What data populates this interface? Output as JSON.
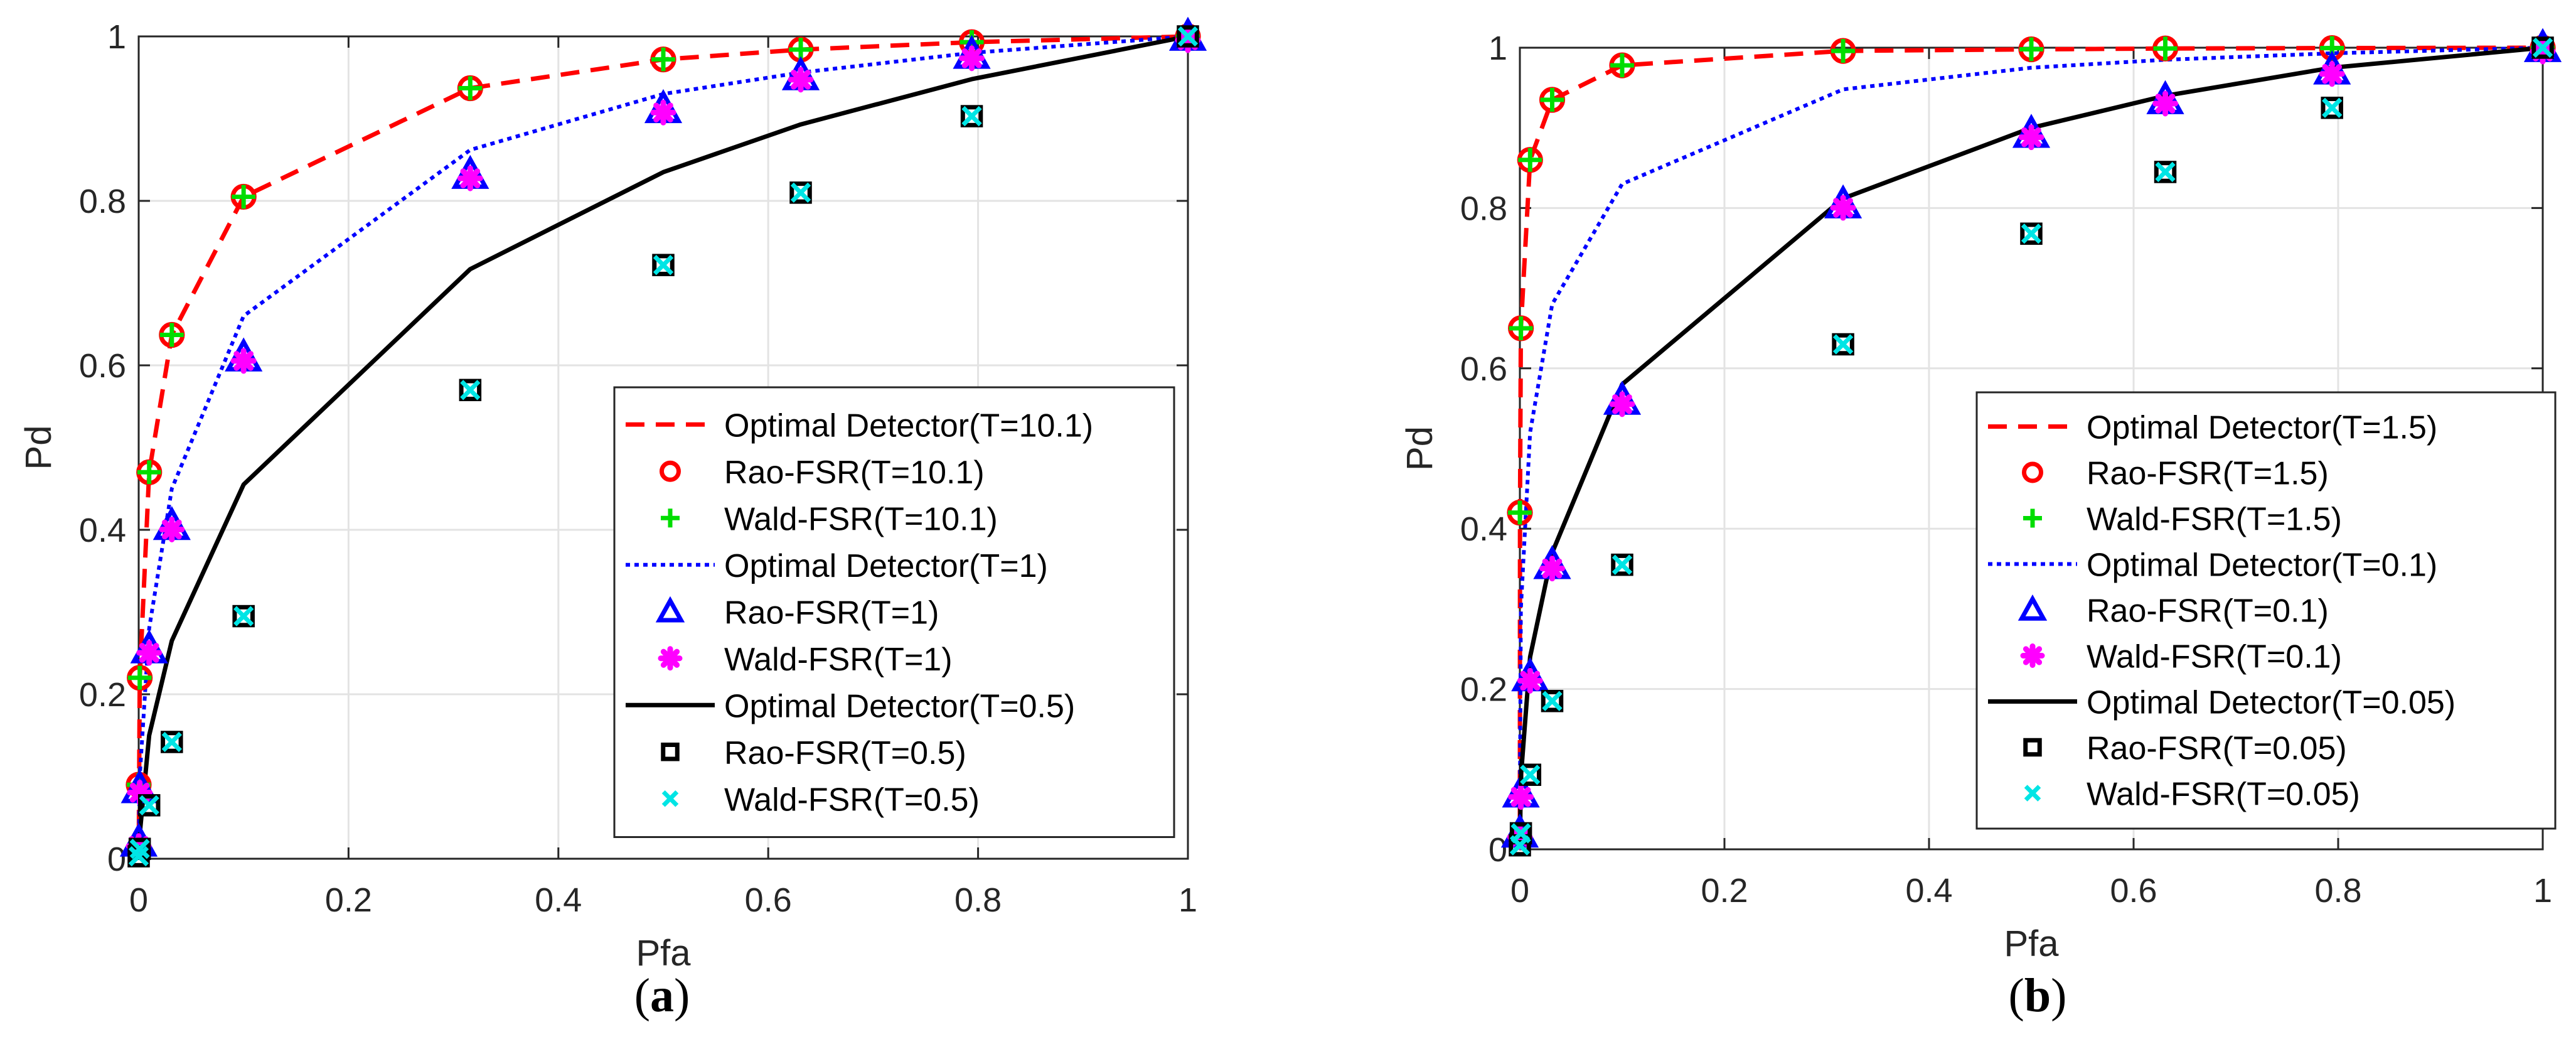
{
  "chart_data": [
    {
      "type": "line",
      "panel": "a",
      "caption_letter": "a",
      "xlabel": "Pfa",
      "ylabel": "Pd",
      "xlim": [
        0,
        1
      ],
      "ylim": [
        0,
        1
      ],
      "xticks": [
        "0",
        "0.2",
        "0.4",
        "0.6",
        "0.8",
        "1"
      ],
      "yticks": [
        "0",
        "0.2",
        "0.4",
        "0.6",
        "0.8",
        "1"
      ],
      "grid": true,
      "legend_position": "bottom-right",
      "series": [
        {
          "name": "Optimal Detector(T=10.1)",
          "style": "dashed-line",
          "color": "#ff0000",
          "x": [
            0,
            0.001,
            0.01,
            0.0316,
            0.1,
            0.316,
            0.5,
            0.631,
            0.794,
            1
          ],
          "y": [
            0,
            0.22,
            0.47,
            0.637,
            0.805,
            0.937,
            0.972,
            0.984,
            0.993,
            1
          ]
        },
        {
          "name": "Rao-FSR(T=10.1)",
          "style": "circle-marker",
          "color": "#ff0000",
          "x": [
            0,
            0.001,
            0.01,
            0.0316,
            0.1,
            0.316,
            0.5,
            0.631,
            0.794,
            1
          ],
          "y": [
            0.09,
            0.22,
            0.47,
            0.637,
            0.805,
            0.937,
            0.972,
            0.984,
            0.993,
            1
          ]
        },
        {
          "name": "Wald-FSR(T=10.1)",
          "style": "plus-marker",
          "color": "#00dd00",
          "x": [
            0,
            0.001,
            0.01,
            0.0316,
            0.1,
            0.316,
            0.5,
            0.631,
            0.794,
            1
          ],
          "y": [
            0.09,
            0.22,
            0.47,
            0.637,
            0.805,
            0.937,
            0.972,
            0.984,
            0.993,
            1
          ]
        },
        {
          "name": "Optimal Detector(T=1)",
          "style": "dotted-line",
          "color": "#0000ff",
          "x": [
            0,
            0.001,
            0.01,
            0.0316,
            0.1,
            0.316,
            0.5,
            0.631,
            0.794,
            1
          ],
          "y": [
            0,
            0.1,
            0.28,
            0.45,
            0.66,
            0.862,
            0.93,
            0.956,
            0.98,
            1
          ]
        },
        {
          "name": "Rao-FSR(T=1)",
          "style": "triangle-marker",
          "color": "#0000ff",
          "x": [
            0,
            0.001,
            0.01,
            0.0316,
            0.1,
            0.316,
            0.5,
            0.631,
            0.794,
            1
          ],
          "y": [
            0.02,
            0.085,
            0.255,
            0.405,
            0.61,
            0.832,
            0.912,
            0.952,
            0.978,
            1
          ]
        },
        {
          "name": "Wald-FSR(T=1)",
          "style": "star-marker",
          "color": "#ff00ff",
          "x": [
            0,
            0.001,
            0.01,
            0.0316,
            0.1,
            0.316,
            0.5,
            0.631,
            0.794,
            1
          ],
          "y": [
            0.02,
            0.085,
            0.255,
            0.405,
            0.61,
            0.832,
            0.912,
            0.952,
            0.978,
            1
          ]
        },
        {
          "name": "Optimal Detector(T=0.5)",
          "style": "solid-line",
          "color": "#000000",
          "x": [
            0,
            0.001,
            0.01,
            0.0316,
            0.1,
            0.316,
            0.5,
            0.631,
            0.794,
            1
          ],
          "y": [
            0,
            0.03,
            0.15,
            0.265,
            0.455,
            0.717,
            0.835,
            0.893,
            0.948,
            1
          ]
        },
        {
          "name": "Rao-FSR(T=0.5)",
          "style": "square-marker",
          "color": "#000000",
          "x": [
            0,
            0.001,
            0.01,
            0.0316,
            0.1,
            0.316,
            0.5,
            0.631,
            0.794,
            1
          ],
          "y": [
            0.003,
            0.012,
            0.065,
            0.142,
            0.295,
            0.57,
            0.722,
            0.81,
            0.903,
            1
          ]
        },
        {
          "name": "Wald-FSR(T=0.5)",
          "style": "cross-marker",
          "color": "#00e5e5",
          "x": [
            0,
            0.001,
            0.01,
            0.0316,
            0.1,
            0.316,
            0.5,
            0.631,
            0.794,
            1
          ],
          "y": [
            0.003,
            0.012,
            0.065,
            0.142,
            0.295,
            0.57,
            0.722,
            0.81,
            0.903,
            1
          ]
        }
      ]
    },
    {
      "type": "line",
      "panel": "b",
      "caption_letter": "b",
      "xlabel": "Pfa",
      "ylabel": "Pd",
      "xlim": [
        0,
        1
      ],
      "ylim": [
        0,
        1
      ],
      "xticks": [
        "0",
        "0.2",
        "0.4",
        "0.6",
        "0.8",
        "1"
      ],
      "yticks": [
        "0",
        "0.2",
        "0.4",
        "0.6",
        "0.8",
        "1"
      ],
      "grid": true,
      "legend_position": "bottom-right",
      "series": [
        {
          "name": "Optimal Detector(T=1.5)",
          "style": "dashed-line",
          "color": "#ff0000",
          "x": [
            0,
            0.0001,
            0.001,
            0.01,
            0.0316,
            0.1,
            0.316,
            0.5,
            0.631,
            0.794,
            1
          ],
          "y": [
            0,
            0.42,
            0.65,
            0.86,
            0.935,
            0.978,
            0.996,
            0.998,
            0.999,
            0.9995,
            1
          ]
        },
        {
          "name": "Rao-FSR(T=1.5)",
          "style": "circle-marker",
          "color": "#ff0000",
          "x": [
            0,
            0.001,
            0.01,
            0.0316,
            0.1,
            0.316,
            0.5,
            0.631,
            0.794,
            1
          ],
          "y": [
            0.42,
            0.65,
            0.86,
            0.935,
            0.978,
            0.996,
            0.998,
            0.999,
            0.9995,
            1
          ]
        },
        {
          "name": "Wald-FSR(T=1.5)",
          "style": "plus-marker",
          "color": "#00dd00",
          "x": [
            0,
            0.001,
            0.01,
            0.0316,
            0.1,
            0.316,
            0.5,
            0.631,
            0.794,
            1
          ],
          "y": [
            0.42,
            0.65,
            0.86,
            0.935,
            0.978,
            0.996,
            0.998,
            0.999,
            0.9995,
            1
          ]
        },
        {
          "name": "Optimal Detector(T=0.1)",
          "style": "dotted-line",
          "color": "#0000ff",
          "x": [
            0,
            0.001,
            0.01,
            0.0316,
            0.1,
            0.316,
            0.5,
            0.631,
            0.794,
            1
          ],
          "y": [
            0.05,
            0.3,
            0.52,
            0.68,
            0.83,
            0.948,
            0.975,
            0.985,
            0.993,
            1
          ]
        },
        {
          "name": "Rao-FSR(T=0.1)",
          "style": "triangle-marker",
          "color": "#0000ff",
          "x": [
            0,
            0.001,
            0.01,
            0.0316,
            0.1,
            0.316,
            0.5,
            0.631,
            0.794,
            1
          ],
          "y": [
            0.02,
            0.07,
            0.215,
            0.355,
            0.56,
            0.805,
            0.893,
            0.935,
            0.972,
            1
          ]
        },
        {
          "name": "Wald-FSR(T=0.1)",
          "style": "star-marker",
          "color": "#ff00ff",
          "x": [
            0,
            0.001,
            0.01,
            0.0316,
            0.1,
            0.316,
            0.5,
            0.631,
            0.794,
            1
          ],
          "y": [
            0.02,
            0.07,
            0.215,
            0.355,
            0.56,
            0.805,
            0.893,
            0.935,
            0.972,
            1
          ]
        },
        {
          "name": "Optimal Detector(T=0.05)",
          "style": "solid-line",
          "color": "#000000",
          "x": [
            0,
            0.001,
            0.01,
            0.0316,
            0.1,
            0.316,
            0.5,
            0.631,
            0.794,
            1
          ],
          "y": [
            0,
            0.09,
            0.24,
            0.37,
            0.58,
            0.812,
            0.9,
            0.94,
            0.975,
            1
          ]
        },
        {
          "name": "Rao-FSR(T=0.05)",
          "style": "square-marker",
          "color": "#000000",
          "x": [
            0,
            0.001,
            0.01,
            0.0316,
            0.1,
            0.316,
            0.5,
            0.631,
            0.794,
            1
          ],
          "y": [
            0.005,
            0.02,
            0.093,
            0.185,
            0.355,
            0.63,
            0.768,
            0.845,
            0.925,
            1
          ]
        },
        {
          "name": "Wald-FSR(T=0.05)",
          "style": "cross-marker",
          "color": "#00e5e5",
          "x": [
            0,
            0.001,
            0.01,
            0.0316,
            0.1,
            0.316,
            0.5,
            0.631,
            0.794,
            1
          ],
          "y": [
            0.005,
            0.02,
            0.093,
            0.185,
            0.355,
            0.63,
            0.768,
            0.845,
            0.925,
            1
          ]
        }
      ]
    }
  ]
}
